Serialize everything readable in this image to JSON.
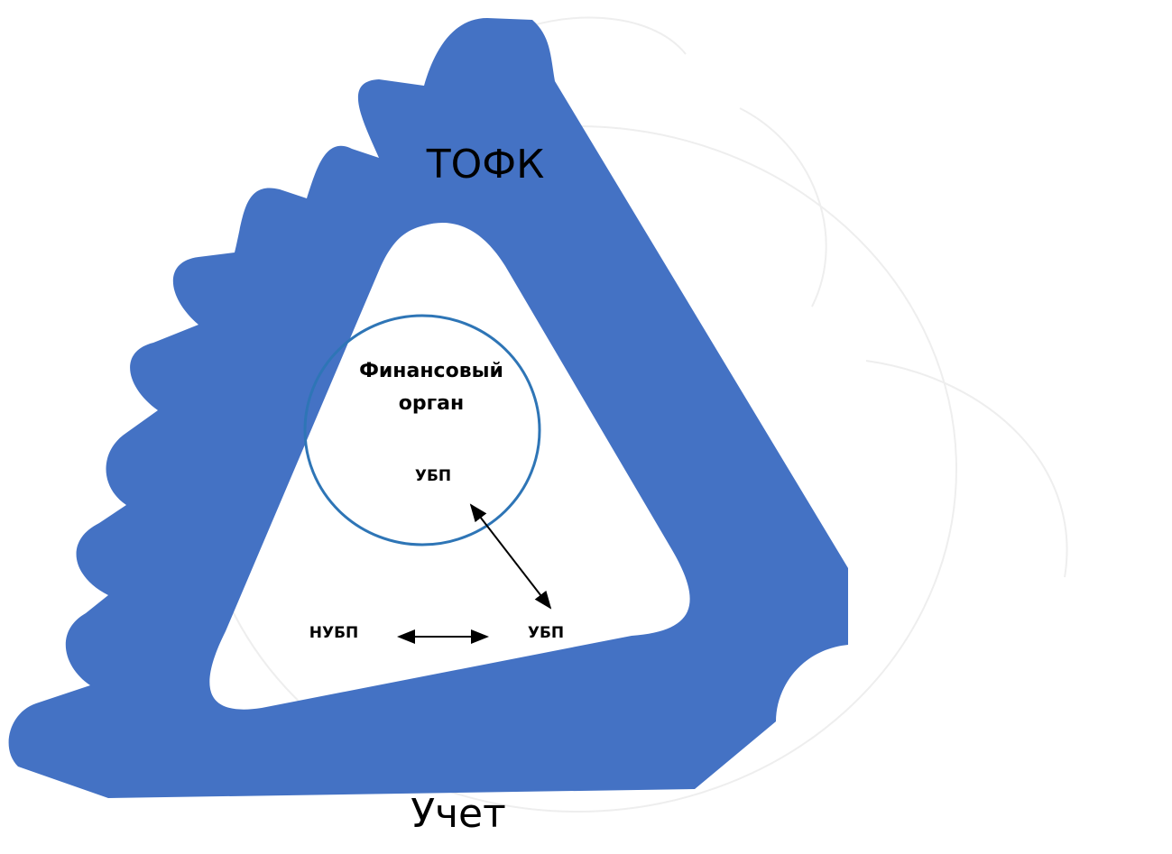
{
  "labels": {
    "top": "ТОФК",
    "bottom": "Учет"
  },
  "circle": {
    "title": [
      "Финансовый",
      "орган"
    ],
    "member": "УБП"
  },
  "nodes": [
    "НУБП",
    "УБП"
  ]
}
